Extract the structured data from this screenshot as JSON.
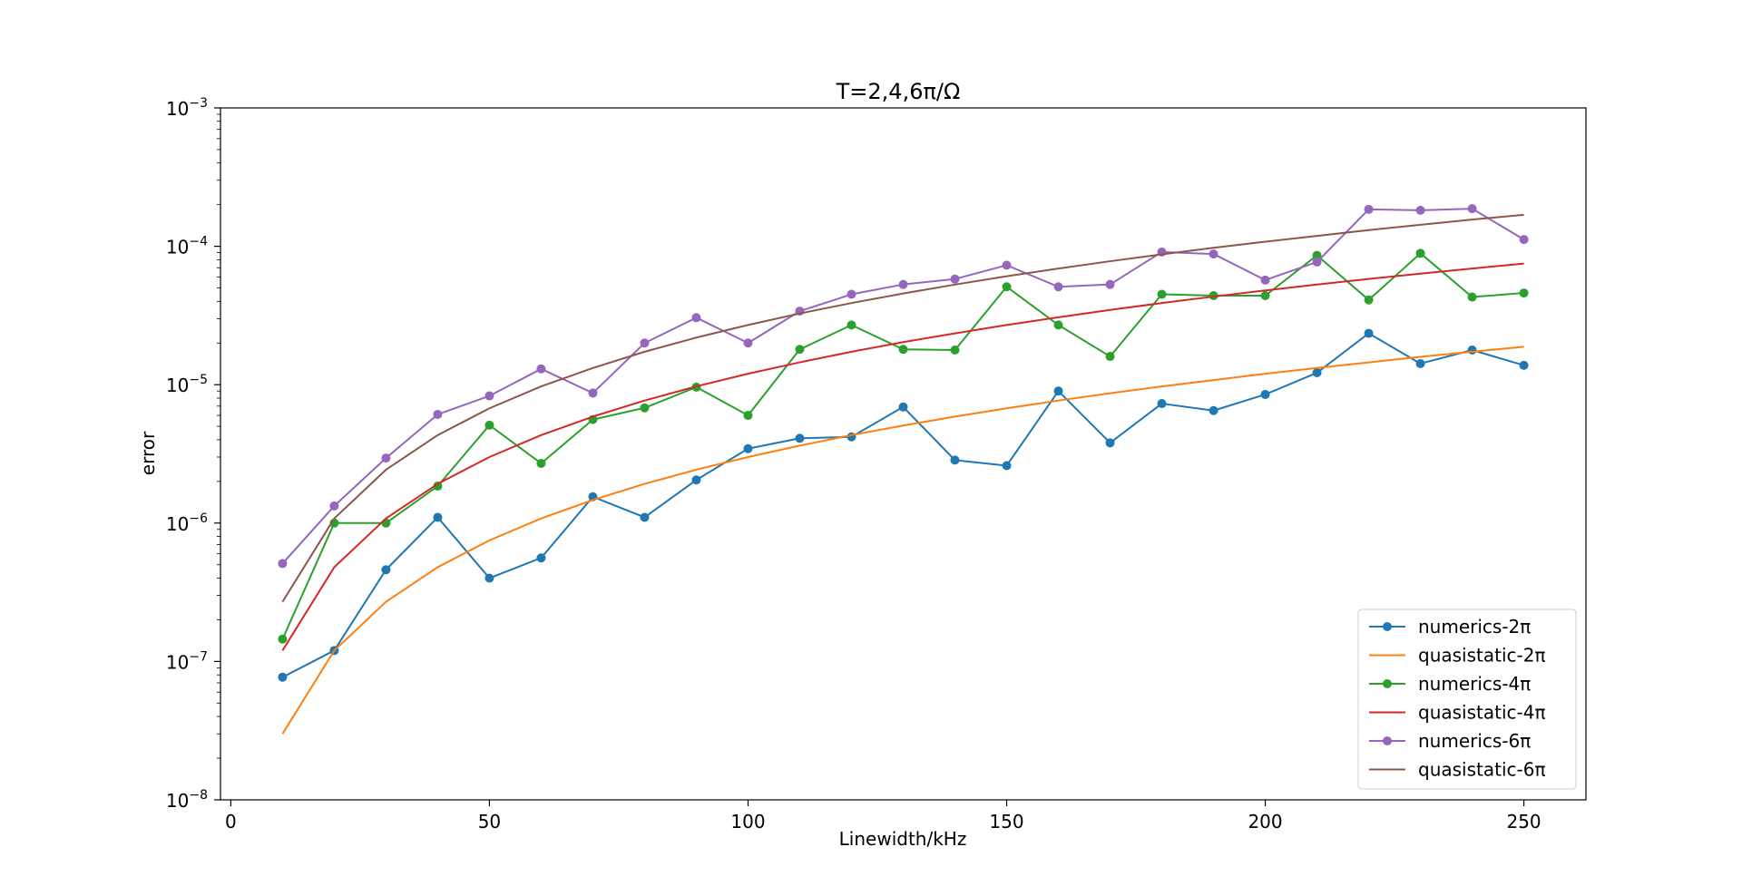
{
  "chart_data": {
    "type": "line",
    "title": "T=2,4,6π/Ω",
    "xlabel": "Linewidth/kHz",
    "ylabel": "error",
    "xlim": [
      -2,
      262
    ],
    "ylim": [
      1e-08,
      0.001
    ],
    "yscale": "log",
    "xticks": [
      0,
      50,
      100,
      150,
      200,
      250
    ],
    "yticks": [
      {
        "value": 1e-08,
        "base": "10",
        "exp": "−8"
      },
      {
        "value": 1e-07,
        "base": "10",
        "exp": "−7"
      },
      {
        "value": 1e-06,
        "base": "10",
        "exp": "−6"
      },
      {
        "value": 1e-05,
        "base": "10",
        "exp": "−5"
      },
      {
        "value": 0.0001,
        "base": "10",
        "exp": "−4"
      },
      {
        "value": 0.001,
        "base": "10",
        "exp": "−3"
      }
    ],
    "grid": false,
    "legend_position": "lower-right",
    "x": [
      10,
      20,
      30,
      40,
      50,
      60,
      70,
      80,
      90,
      100,
      110,
      120,
      130,
      140,
      150,
      160,
      170,
      180,
      190,
      200,
      210,
      220,
      230,
      240,
      250
    ],
    "series": [
      {
        "name": "numerics-2π",
        "color": "#1f77b4",
        "marker": true,
        "values": [
          7.7e-08,
          1.2e-07,
          4.6e-07,
          1.1e-06,
          4e-07,
          5.6e-07,
          1.55e-06,
          1.1e-06,
          2.05e-06,
          3.45e-06,
          4.1e-06,
          4.2e-06,
          6.9e-06,
          2.85e-06,
          2.6e-06,
          9e-06,
          3.8e-06,
          7.3e-06,
          6.5e-06,
          8.5e-06,
          1.22e-05,
          2.35e-05,
          1.42e-05,
          1.78e-05,
          1.38e-05
        ]
      },
      {
        "name": "quasistatic-2π",
        "color": "#ff7f0e",
        "marker": false,
        "values": [
          3e-08,
          1.2e-07,
          2.7e-07,
          4.8e-07,
          7.5e-07,
          1.08e-06,
          1.47e-06,
          1.92e-06,
          2.43e-06,
          3e-06,
          3.63e-06,
          4.32e-06,
          5.07e-06,
          5.88e-06,
          6.75e-06,
          7.68e-06,
          8.67e-06,
          9.72e-06,
          1.08e-05,
          1.2e-05,
          1.32e-05,
          1.45e-05,
          1.59e-05,
          1.73e-05,
          1.88e-05
        ]
      },
      {
        "name": "numerics-4π",
        "color": "#2ca02c",
        "marker": true,
        "values": [
          1.45e-07,
          1e-06,
          1e-06,
          1.85e-06,
          5.1e-06,
          2.7e-06,
          5.6e-06,
          6.8e-06,
          9.6e-06,
          6e-06,
          1.8e-05,
          2.7e-05,
          1.8e-05,
          1.78e-05,
          5.1e-05,
          2.7e-05,
          1.6e-05,
          4.5e-05,
          4.4e-05,
          4.4e-05,
          8.6e-05,
          4.1e-05,
          8.9e-05,
          4.3e-05,
          4.6e-05
        ]
      },
      {
        "name": "quasistatic-4π",
        "color": "#d62728",
        "marker": false,
        "values": [
          1.2e-07,
          4.8e-07,
          1.08e-06,
          1.92e-06,
          3e-06,
          4.32e-06,
          5.88e-06,
          7.68e-06,
          9.72e-06,
          1.2e-05,
          1.45e-05,
          1.73e-05,
          2.03e-05,
          2.35e-05,
          2.7e-05,
          3.07e-05,
          3.47e-05,
          3.89e-05,
          4.33e-05,
          4.8e-05,
          5.29e-05,
          5.81e-05,
          6.35e-05,
          6.91e-05,
          7.5e-05
        ]
      },
      {
        "name": "numerics-6π",
        "color": "#9467bd",
        "marker": true,
        "values": [
          5.1e-07,
          1.33e-06,
          2.95e-06,
          6.1e-06,
          8.3e-06,
          1.3e-05,
          8.7e-06,
          2e-05,
          3.05e-05,
          2e-05,
          3.4e-05,
          4.5e-05,
          5.3e-05,
          5.8e-05,
          7.3e-05,
          5.1e-05,
          5.3e-05,
          9.1e-05,
          8.8e-05,
          5.7e-05,
          7.7e-05,
          0.000185,
          0.000182,
          0.000187,
          0.000112
        ]
      },
      {
        "name": "quasistatic-6π",
        "color": "#8c564b",
        "marker": false,
        "values": [
          2.7e-07,
          1.08e-06,
          2.43e-06,
          4.32e-06,
          6.75e-06,
          9.72e-06,
          1.32e-05,
          1.73e-05,
          2.19e-05,
          2.7e-05,
          3.27e-05,
          3.89e-05,
          4.56e-05,
          5.29e-05,
          6.08e-05,
          6.91e-05,
          7.8e-05,
          8.75e-05,
          9.75e-05,
          0.000108,
          0.000119,
          0.000131,
          0.000143,
          0.000156,
          0.000169
        ]
      }
    ]
  }
}
